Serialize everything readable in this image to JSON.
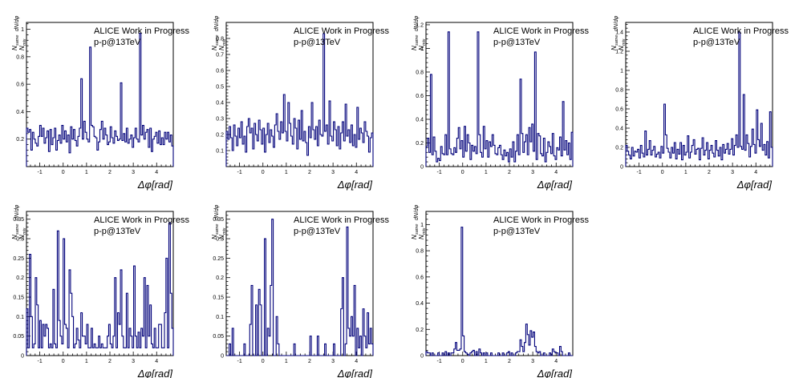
{
  "chart_data": [
    {
      "type": "histogram",
      "annotation": "ALICE Work in Progress",
      "system": "p-p@13TeV",
      "xlabel": "Δφ[rad]",
      "ylabel_main": "N",
      "ylabel_sub_top": "same",
      "ylabel_sub_bottom": "mix",
      "ylabel_frac": "dN/dφ",
      "xlim": [
        -1.571,
        4.712
      ],
      "ylim": [
        0,
        1.05
      ],
      "xticks": [
        -1,
        0,
        1,
        2,
        3,
        4
      ],
      "yticks": [
        0.2,
        0.4,
        0.6,
        0.8,
        1
      ],
      "ytick_labels": [
        "0.2",
        "0.4",
        "0.6",
        "0.8",
        "1"
      ],
      "values": [
        0.28,
        0.25,
        0.27,
        0.12,
        0.25,
        0.2,
        0.17,
        0.15,
        0.22,
        0.3,
        0.22,
        0.28,
        0.17,
        0.21,
        0.26,
        0.11,
        0.27,
        0.16,
        0.21,
        0.28,
        0.12,
        0.19,
        0.23,
        0.17,
        0.3,
        0.2,
        0.26,
        0.18,
        0.23,
        0.1,
        0.29,
        0.2,
        0.27,
        0.19,
        0.15,
        0.22,
        0.28,
        0.64,
        0.2,
        0.33,
        0.25,
        0.2,
        0.18,
        0.87,
        0.3,
        0.29,
        0.22,
        0.21,
        0.12,
        0.18,
        0.27,
        0.33,
        0.2,
        0.28,
        0.23,
        0.16,
        0.18,
        0.29,
        0.21,
        0.17,
        0.26,
        0.22,
        0.19,
        0.2,
        0.61,
        0.19,
        0.24,
        0.18,
        0.28,
        0.17,
        0.2,
        0.23,
        0.14,
        0.21,
        0.28,
        0.2,
        0.18,
        0.97,
        0.23,
        0.3,
        0.2,
        0.25,
        0.27,
        0.14,
        0.28,
        0.11,
        0.2,
        0.22,
        0.25,
        0.17,
        0.26,
        0.16,
        0.21,
        0.16,
        0.25,
        0.2,
        0.25,
        0.18,
        0.23,
        0.15
      ]
    },
    {
      "type": "histogram",
      "annotation": "ALICE Work in Progress",
      "system": "p-p@13TeV",
      "xlabel": "Δφ[rad]",
      "ylabel_main": "N",
      "ylabel_sub_top": "same",
      "ylabel_sub_bottom": "mix",
      "ylabel_frac": "dN/dφ",
      "xlim": [
        -1.571,
        4.712
      ],
      "ylim": [
        0,
        0.9
      ],
      "xticks": [
        -1,
        0,
        1,
        2,
        3,
        4
      ],
      "yticks": [
        0.1,
        0.2,
        0.3,
        0.4,
        0.5,
        0.6,
        0.7,
        0.8
      ],
      "ytick_labels": [
        "0.1",
        "0.2",
        "0.3",
        "0.4",
        "0.5",
        "0.6",
        "0.7",
        "0.8"
      ],
      "values": [
        0.22,
        0.17,
        0.25,
        0.18,
        0.1,
        0.26,
        0.19,
        0.13,
        0.24,
        0.18,
        0.28,
        0.14,
        0.19,
        0.09,
        0.25,
        0.3,
        0.21,
        0.24,
        0.11,
        0.27,
        0.2,
        0.16,
        0.29,
        0.23,
        0.14,
        0.24,
        0.09,
        0.2,
        0.27,
        0.15,
        0.23,
        0.19,
        0.12,
        0.26,
        0.33,
        0.22,
        0.17,
        0.28,
        0.21,
        0.45,
        0.22,
        0.16,
        0.4,
        0.27,
        0.19,
        0.14,
        0.3,
        0.24,
        0.11,
        0.29,
        0.17,
        0.35,
        0.16,
        0.22,
        0.15,
        0.07,
        0.25,
        0.18,
        0.4,
        0.23,
        0.17,
        0.25,
        0.13,
        0.29,
        0.2,
        0.19,
        0.83,
        0.22,
        0.26,
        0.14,
        0.41,
        0.19,
        0.16,
        0.28,
        0.23,
        0.13,
        0.25,
        0.11,
        0.21,
        0.28,
        0.16,
        0.39,
        0.19,
        0.23,
        0.15,
        0.26,
        0.13,
        0.2,
        0.12,
        0.37,
        0.17,
        0.24,
        0.21,
        0.15,
        0.28,
        0.22,
        0.19,
        0.09,
        0.18,
        0.21
      ]
    },
    {
      "type": "histogram",
      "annotation": "ALICE Work in Progress",
      "system": "p-p@13TeV",
      "xlabel": "Δφ[rad]",
      "ylabel_main": "N",
      "ylabel_sub_top": "same",
      "ylabel_sub_bottom": "mix",
      "ylabel_frac": "dN/dφ",
      "xlim": [
        -1.571,
        4.712
      ],
      "ylim": [
        0,
        1.22
      ],
      "xticks": [
        -1,
        0,
        1,
        2,
        3,
        4
      ],
      "yticks": [
        0,
        0.2,
        0.4,
        0.6,
        0.8,
        1,
        1.2
      ],
      "ytick_labels": [
        "0",
        "0.2",
        "0.4",
        "0.6",
        "0.8",
        "1",
        "1.2"
      ],
      "values": [
        0.17,
        0.24,
        0.12,
        0.78,
        0.1,
        0.25,
        0.13,
        0.04,
        0.07,
        0.05,
        0.17,
        0.11,
        0.1,
        0.27,
        0.1,
        1.14,
        0.15,
        0.11,
        0.1,
        0.16,
        0.12,
        0.24,
        0.33,
        0.15,
        0.22,
        0.08,
        0.34,
        0.13,
        0.27,
        0.2,
        0.06,
        0.18,
        0.13,
        0.17,
        0.11,
        1.14,
        0.27,
        0.12,
        0.08,
        0.34,
        0.15,
        0.22,
        0.08,
        0.21,
        0.17,
        0.27,
        0.18,
        0.11,
        0.1,
        0.16,
        0.18,
        0.1,
        0.06,
        0.14,
        0.09,
        0.12,
        0.04,
        0.15,
        0.08,
        0.21,
        0.04,
        0.13,
        0.27,
        0.1,
        0.74,
        0.28,
        0.12,
        0.21,
        0.27,
        0.1,
        0.33,
        0.21,
        0.36,
        0.13,
        0.97,
        0.06,
        0.28,
        0.26,
        0.11,
        0.09,
        0.24,
        0.04,
        0.12,
        0.21,
        0.17,
        0.11,
        0.28,
        0.09,
        0.06,
        0.16,
        0.14,
        0.25,
        0.09,
        0.55,
        0.14,
        0.22,
        0.1,
        0.2,
        0.06,
        0.29
      ]
    },
    {
      "type": "histogram",
      "annotation": "ALICE Work in Progress",
      "system": "p-p@13TeV",
      "xlabel": "Δφ[rad]",
      "ylabel_main": "N",
      "ylabel_sub_top": "same",
      "ylabel_sub_bottom": "mix",
      "ylabel_frac": "dN/dφ",
      "xlim": [
        -1.571,
        4.712
      ],
      "ylim": [
        0,
        1.5
      ],
      "xticks": [
        -1,
        0,
        1,
        2,
        3,
        4
      ],
      "yticks": [
        0,
        0.2,
        0.4,
        0.6,
        0.8,
        1,
        1.2,
        1.4
      ],
      "ytick_labels": [
        "0",
        "0.2",
        "0.4",
        "0.6",
        "0.8",
        "1",
        "1.2",
        "1.4"
      ],
      "values": [
        0.22,
        0.16,
        0.12,
        0.08,
        0.2,
        0.11,
        0.16,
        0.15,
        0.18,
        0.09,
        0.22,
        0.14,
        0.1,
        0.37,
        0.12,
        0.18,
        0.27,
        0.12,
        0.17,
        0.21,
        0.1,
        0.13,
        0.15,
        0.09,
        0.21,
        0.14,
        0.65,
        0.33,
        0.19,
        0.15,
        0.09,
        0.2,
        0.14,
        0.25,
        0.08,
        0.18,
        0.13,
        0.25,
        0.07,
        0.22,
        0.12,
        0.15,
        0.32,
        0.09,
        0.15,
        0.22,
        0.28,
        0.13,
        0.18,
        0.19,
        0.07,
        0.19,
        0.3,
        0.12,
        0.17,
        0.25,
        0.08,
        0.17,
        0.22,
        0.14,
        0.1,
        0.27,
        0.17,
        0.11,
        0.2,
        0.07,
        0.23,
        0.14,
        0.18,
        0.24,
        0.13,
        0.18,
        0.29,
        0.12,
        0.22,
        0.33,
        0.2,
        1.4,
        0.21,
        0.18,
        0.75,
        0.17,
        0.33,
        0.24,
        0.1,
        0.21,
        0.39,
        0.23,
        0.14,
        0.59,
        0.28,
        0.21,
        0.45,
        0.17,
        0.23,
        0.12,
        0.26,
        0.09,
        0.57,
        0.2
      ]
    },
    {
      "type": "histogram",
      "annotation": "ALICE Work in Progress",
      "system": "p-p@13TeV",
      "xlabel": "Δφ[rad]",
      "ylabel_main": "N",
      "ylabel_sub_top": "same",
      "ylabel_sub_bottom": "mix",
      "ylabel_frac": "dN/dφ",
      "xlim": [
        -1.571,
        4.712
      ],
      "ylim": [
        0,
        0.37
      ],
      "xticks": [
        -1,
        0,
        1,
        2,
        3,
        4
      ],
      "yticks": [
        0,
        0.05,
        0.1,
        0.15,
        0.2,
        0.25,
        0.3,
        0.35
      ],
      "ytick_labels": [
        "0",
        "0.05",
        "0.1",
        "0.15",
        "0.2",
        "0.25",
        "0.3",
        "0.35"
      ],
      "values": [
        0.12,
        0.02,
        0.26,
        0.1,
        0.02,
        0.03,
        0.2,
        0.13,
        0.02,
        0.09,
        0.02,
        0.08,
        0.05,
        0.08,
        0.07,
        0.02,
        0.03,
        0.02,
        0.17,
        0.03,
        0.02,
        0.32,
        0.09,
        0.05,
        0.03,
        0.3,
        0.08,
        0.07,
        0.02,
        0.22,
        0.16,
        0.1,
        0.02,
        0.03,
        0.07,
        0.04,
        0.02,
        0.11,
        0.05,
        0.05,
        0.03,
        0.08,
        0.02,
        0.02,
        0.07,
        0.02,
        0.03,
        0.02,
        0.02,
        0.05,
        0.02,
        0.03,
        0.02,
        0.02,
        0.02,
        0.05,
        0.08,
        0.03,
        0.02,
        0.05,
        0.2,
        0.02,
        0.11,
        0.08,
        0.22,
        0.05,
        0.02,
        0.02,
        0.16,
        0.02,
        0.07,
        0.05,
        0.02,
        0.23,
        0.05,
        0.02,
        0.06,
        0.02,
        0.07,
        0.05,
        0.2,
        0.02,
        0.18,
        0.05,
        0.13,
        0.03,
        0.02,
        0.07,
        0.02,
        0.02,
        0.08,
        0.08,
        0.02,
        0.02,
        0.11,
        0.25,
        0.02,
        0.34,
        0.16,
        0.07
      ]
    },
    {
      "type": "histogram",
      "annotation": "ALICE Work in Progress",
      "system": "p-p@13TeV",
      "xlabel": "Δφ[rad]",
      "ylabel_main": "N",
      "ylabel_sub_top": "same",
      "ylabel_sub_bottom": "mix",
      "ylabel_frac": "dN/dφ",
      "xlim": [
        -1.571,
        4.712
      ],
      "ylim": [
        0,
        0.37
      ],
      "xticks": [
        -1,
        0,
        1,
        2,
        3,
        4
      ],
      "yticks": [
        0,
        0.05,
        0.1,
        0.15,
        0.2,
        0.25,
        0.3,
        0.35
      ],
      "ytick_labels": [
        "0",
        "0.05",
        "0.1",
        "0.15",
        "0.2",
        "0.25",
        "0.3",
        "0.35"
      ],
      "values": [
        0,
        0,
        0.03,
        0,
        0.07,
        0,
        0,
        0,
        0,
        0,
        0,
        0,
        0.03,
        0,
        0,
        0,
        0.08,
        0.18,
        0,
        0,
        0.13,
        0,
        0.17,
        0.13,
        0,
        0,
        0.3,
        0,
        0.07,
        0.05,
        0.18,
        0.35,
        0,
        0,
        0.1,
        0.03,
        0,
        0,
        0,
        0,
        0,
        0,
        0,
        0,
        0,
        0,
        0.03,
        0,
        0,
        0,
        0,
        0,
        0,
        0,
        0,
        0,
        0,
        0.05,
        0,
        0,
        0,
        0,
        0.05,
        0,
        0,
        0,
        0,
        0.03,
        0,
        0,
        0,
        0,
        0,
        0.03,
        0,
        0,
        0,
        0,
        0.12,
        0.2,
        0,
        0.03,
        0.33,
        0.07,
        0.05,
        0.1,
        0.05,
        0.18,
        0,
        0.07,
        0.02,
        0.05,
        0,
        0.12,
        0.05,
        0.02,
        0.11,
        0.03,
        0.07,
        0.03
      ]
    },
    {
      "type": "histogram",
      "annotation": "ALICE Work in Progress",
      "system": "p-p@13TeV",
      "xlabel": "Δφ[rad]",
      "ylabel_main": "N",
      "ylabel_sub_top": "same",
      "ylabel_sub_bottom": "mix",
      "ylabel_frac": "dN/dφ",
      "xlim": [
        -1.571,
        4.712
      ],
      "ylim": [
        0,
        1.1
      ],
      "xticks": [
        -1,
        0,
        1,
        2,
        3,
        4
      ],
      "yticks": [
        0,
        0.2,
        0.4,
        0.6,
        0.8,
        1
      ],
      "ytick_labels": [
        "0",
        "0.2",
        "0.4",
        "0.6",
        "0.8",
        "1"
      ],
      "values": [
        0.03,
        0.02,
        0.02,
        0,
        0.02,
        0,
        0,
        0,
        0.02,
        0,
        0,
        0.02,
        0,
        0.03,
        0,
        0.02,
        0,
        0.02,
        0.02,
        0.05,
        0.1,
        0.04,
        0.04,
        0.05,
        0.98,
        0.15,
        0.03,
        0.02,
        0.01,
        0,
        0.02,
        0.03,
        0.04,
        0,
        0.03,
        0,
        0.05,
        0.02,
        0,
        0.02,
        0,
        0.02,
        0,
        0,
        0.02,
        0,
        0,
        0,
        0,
        0.02,
        0,
        0,
        0.02,
        0,
        0,
        0.02,
        0.03,
        0,
        0.02,
        0,
        0,
        0.02,
        0.03,
        0.03,
        0.12,
        0.07,
        0.03,
        0.1,
        0.24,
        0.16,
        0.08,
        0.19,
        0.14,
        0.18,
        0.07,
        0.03,
        0.02,
        0.03,
        0,
        0,
        0.02,
        0,
        0,
        0,
        0.02,
        0,
        0.05,
        0.03,
        0.02,
        0.02,
        0,
        0.07,
        0.03,
        0,
        0,
        0,
        0,
        0.02,
        0,
        0
      ]
    }
  ]
}
